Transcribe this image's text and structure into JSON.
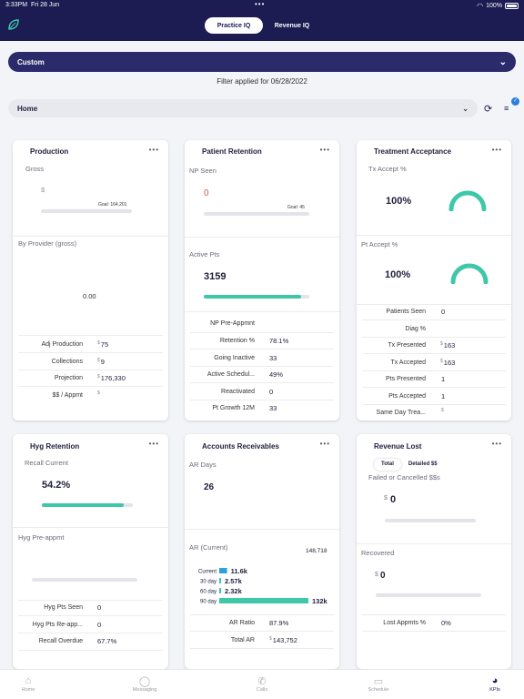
{
  "status": {
    "time": "3:33PM",
    "date": "Fri 28 Jun",
    "battery": "100%"
  },
  "header": {
    "tabs": [
      "Practice IQ",
      "Revenue IQ"
    ],
    "active_tab": "Practice IQ"
  },
  "filter": {
    "range": "Custom",
    "applied_text": "Filter applied for 06/28/2022",
    "location": "Home",
    "badge": "✓"
  },
  "cards": {
    "production": {
      "title": "Production",
      "gross_label": "Gross",
      "gross_value": "$",
      "goal": "Goal: 164,201",
      "by_provider_label": "By Provider (gross)",
      "by_provider_value": "0.00",
      "rows": [
        {
          "label": "Adj Production",
          "value": "75"
        },
        {
          "label": "Collections",
          "value": "9"
        },
        {
          "label": "Projection",
          "value": "176,330"
        },
        {
          "label": "$$ / Appmt",
          "value": ""
        }
      ]
    },
    "patient_retention": {
      "title": "Patient Retention",
      "np_label": "NP Seen",
      "np_value": "0",
      "goal": "Goal: 45",
      "active_label": "Active Pts",
      "active_value": "3159",
      "active_progress": 0.92,
      "rows": [
        {
          "label": "NP Pre-Appmnt",
          "value": ""
        },
        {
          "label": "Retention %",
          "value": "78.1%"
        },
        {
          "label": "Going Inactive",
          "value": "33"
        },
        {
          "label": "Active Schedul...",
          "value": "49%"
        },
        {
          "label": "Reactivated",
          "value": "0"
        },
        {
          "label": "Pt Growth 12M",
          "value": "33"
        }
      ]
    },
    "treatment_acceptance": {
      "title": "Treatment Acceptance",
      "tx_label": "Tx Accept %",
      "tx_value": "100%",
      "tx_gauge": 1.0,
      "pt_label": "Pt Accept %",
      "pt_value": "100%",
      "pt_gauge": 1.0,
      "rows": [
        {
          "label": "Patients Seen",
          "value": "0"
        },
        {
          "label": "Diag %",
          "value": ""
        },
        {
          "label": "Tx Presented",
          "value": "163"
        },
        {
          "label": "Tx Accepted",
          "value": "163"
        },
        {
          "label": "Pts Presented",
          "value": "1"
        },
        {
          "label": "Pts Accepted",
          "value": "1"
        },
        {
          "label": "Same Day Trea...",
          "value": ""
        }
      ]
    },
    "hyg_retention": {
      "title": "Hyg Retention",
      "recall_label": "Recall Current",
      "recall_value": "54.2%",
      "recall_progress": 0.9,
      "preappmt_label": "Hyg Pre-appmt",
      "rows": [
        {
          "label": "Hyg Pts Seen",
          "value": "0"
        },
        {
          "label": "Hyg Pts Re-app...",
          "value": "0"
        },
        {
          "label": "Recall Overdue",
          "value": "67.7%"
        }
      ]
    },
    "accounts_receivables": {
      "title": "Accounts Receivables",
      "ar_days_label": "AR Days",
      "ar_days_value": "26",
      "ar_current_label": "AR (Current)",
      "ar_current_value": "148,718",
      "aging": [
        {
          "label": "Current",
          "value": "11.6k",
          "amount": 11.6
        },
        {
          "label": "30 day",
          "value": "2.57k",
          "amount": 2.57
        },
        {
          "label": "60 day",
          "value": "2.32k",
          "amount": 2.32
        },
        {
          "label": "90 day",
          "value": "132k",
          "amount": 132
        }
      ],
      "rows": [
        {
          "label": "AR Ratio",
          "value": "87.9%"
        },
        {
          "label": "Total AR",
          "value": "143,752"
        }
      ]
    },
    "revenue_lost": {
      "title": "Revenue Lost",
      "tabs": [
        "Total",
        "Detailed $$"
      ],
      "failed_label": "Failed or Cancelled $$s",
      "failed_value": "0",
      "recovered_label": "Recovered",
      "recovered_value": "0",
      "lost_label": "Lost Appmts %",
      "lost_value": "0%"
    }
  },
  "nav": [
    "Home",
    "Messaging",
    "Calls",
    "Schedule",
    "KPIs"
  ]
}
